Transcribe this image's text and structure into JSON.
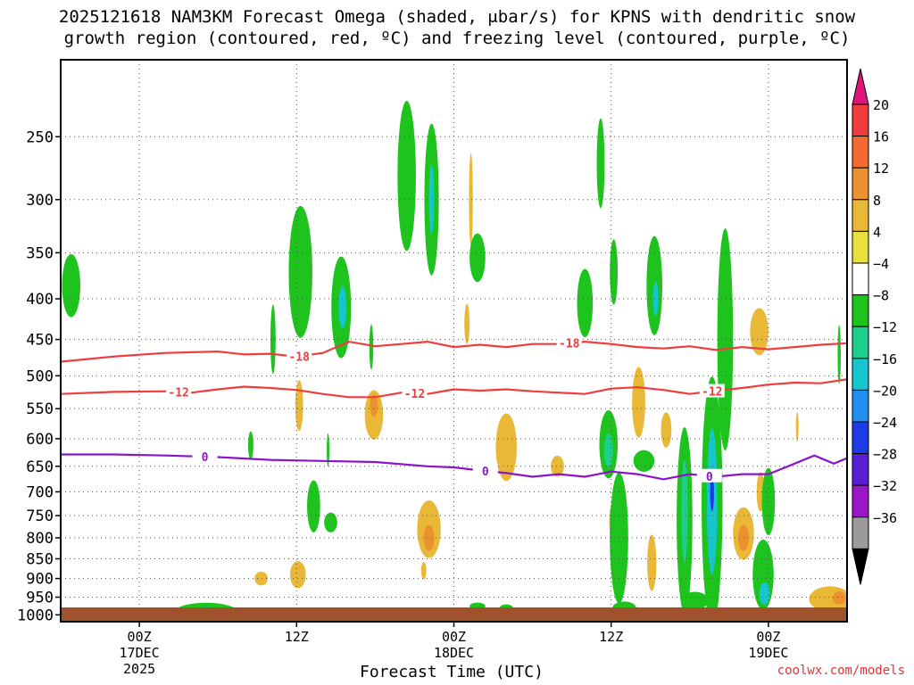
{
  "title": {
    "line1": "2025121618 NAM3KM Forecast Omega (shaded, μbar/s) for KPNS with dendritic snow",
    "line2": "growth region (contoured, red, ºC) and freezing level (contoured, purple, ºC)"
  },
  "watermark": "coolwx.com/models",
  "chart_data": {
    "type": "heatmap",
    "xlabel": "Forecast Time (UTC)",
    "x_ticks": [
      {
        "hour": 6,
        "lines": [
          "00Z",
          "17DEC",
          "2025"
        ]
      },
      {
        "hour": 18,
        "lines": [
          "12Z"
        ]
      },
      {
        "hour": 30,
        "lines": [
          "00Z",
          "18DEC"
        ]
      },
      {
        "hour": 42,
        "lines": [
          "12Z"
        ]
      },
      {
        "hour": 54,
        "lines": [
          "00Z",
          "19DEC"
        ]
      }
    ],
    "xlim": [
      0,
      60
    ],
    "ylim_hpa": [
      1020,
      200
    ],
    "y_ticks": [
      "250",
      "300",
      "350",
      "400",
      "450",
      "500",
      "550",
      "600",
      "650",
      "700",
      "750",
      "800",
      "850",
      "900",
      "950",
      "1000"
    ],
    "colorbar": {
      "labels": [
        "20",
        "16",
        "12",
        "8",
        "4",
        "−4",
        "−8",
        "−12",
        "−16",
        "−20",
        "−24",
        "−28",
        "−32",
        "−36"
      ],
      "colors": [
        "#f03c3c",
        "#f56a32",
        "#ec9130",
        "#e8b836",
        "#e8e03c",
        "#ffffff",
        "#1ec31e",
        "#1ccf8a",
        "#16c6cf",
        "#1e8ff0",
        "#1e3ce6",
        "#5a1ed2",
        "#9a16c8",
        "#9b9b9b"
      ],
      "top_cap_color": "#e0147a",
      "bottom_cap_color": "#000000"
    },
    "contours": [
      {
        "label": "-18",
        "color": "#f03c3c",
        "label_hours": [
          18.2,
          38.8
        ],
        "points": [
          [
            0,
            480
          ],
          [
            4,
            473
          ],
          [
            8,
            468
          ],
          [
            12,
            466
          ],
          [
            14,
            470
          ],
          [
            16,
            469
          ],
          [
            18,
            473
          ],
          [
            20,
            468
          ],
          [
            22,
            453
          ],
          [
            24,
            459
          ],
          [
            26,
            456
          ],
          [
            28,
            453
          ],
          [
            30,
            460
          ],
          [
            32,
            457
          ],
          [
            34,
            460
          ],
          [
            36,
            456
          ],
          [
            38,
            456
          ],
          [
            40,
            453
          ],
          [
            42,
            456
          ],
          [
            44,
            460
          ],
          [
            46,
            462
          ],
          [
            48,
            459
          ],
          [
            50,
            464
          ],
          [
            52,
            460
          ],
          [
            54,
            463
          ],
          [
            56,
            460
          ],
          [
            58,
            457
          ],
          [
            60,
            455
          ]
        ]
      },
      {
        "label": "-12",
        "color": "#f03c3c",
        "label_hours": [
          9,
          27,
          49.7
        ],
        "points": [
          [
            0,
            527
          ],
          [
            4,
            524
          ],
          [
            8,
            523
          ],
          [
            10,
            525
          ],
          [
            12,
            520
          ],
          [
            14,
            516
          ],
          [
            16,
            518
          ],
          [
            18,
            521
          ],
          [
            20,
            527
          ],
          [
            22,
            532
          ],
          [
            24,
            532
          ],
          [
            26,
            525
          ],
          [
            28,
            527
          ],
          [
            30,
            520
          ],
          [
            32,
            522
          ],
          [
            34,
            520
          ],
          [
            36,
            523
          ],
          [
            38,
            525
          ],
          [
            40,
            527
          ],
          [
            42,
            519
          ],
          [
            44,
            517
          ],
          [
            46,
            521
          ],
          [
            48,
            527
          ],
          [
            50,
            522
          ],
          [
            52,
            518
          ],
          [
            54,
            513
          ],
          [
            56,
            510
          ],
          [
            58,
            511
          ],
          [
            60,
            505
          ]
        ]
      },
      {
        "label": "0",
        "color": "#8c14c8",
        "label_hours": [
          11,
          32.4,
          49.5
        ],
        "points": [
          [
            0,
            628
          ],
          [
            4,
            628
          ],
          [
            8,
            630
          ],
          [
            12,
            633
          ],
          [
            16,
            638
          ],
          [
            20,
            640
          ],
          [
            24,
            642
          ],
          [
            28,
            650
          ],
          [
            30,
            652
          ],
          [
            32,
            658
          ],
          [
            34,
            663
          ],
          [
            36,
            670
          ],
          [
            38,
            665
          ],
          [
            40,
            670
          ],
          [
            42,
            660
          ],
          [
            44,
            665
          ],
          [
            46,
            675
          ],
          [
            48,
            665
          ],
          [
            50,
            670
          ],
          [
            52,
            665
          ],
          [
            54,
            665
          ],
          [
            56,
            645
          ],
          [
            57.5,
            630
          ],
          [
            59,
            645
          ],
          [
            60,
            635
          ]
        ]
      }
    ],
    "omega_regions": [
      {
        "value": -4,
        "t": 0.8,
        "p": 385,
        "dt": 0.7,
        "dp": 35
      },
      {
        "value": 4,
        "t": 18.2,
        "p": 545,
        "dt": 0.3,
        "dp": 40
      },
      {
        "value": 4,
        "t": 23.9,
        "p": 560,
        "dt": 0.7,
        "dp": 40
      },
      {
        "value": 8,
        "t": 23.9,
        "p": 545,
        "dt": 0.3,
        "dp": 18
      },
      {
        "value": 4,
        "t": 31.0,
        "p": 430,
        "dt": 0.2,
        "dp": 25
      },
      {
        "value": 4,
        "t": 31.3,
        "p": 300,
        "dt": 0.15,
        "dp": 40
      },
      {
        "value": 4,
        "t": 34.0,
        "p": 615,
        "dt": 0.8,
        "dp": 60
      },
      {
        "value": 4,
        "t": 37.9,
        "p": 650,
        "dt": 0.5,
        "dp": 20
      },
      {
        "value": 4,
        "t": 28.1,
        "p": 780,
        "dt": 0.9,
        "dp": 65
      },
      {
        "value": 8,
        "t": 28.1,
        "p": 800,
        "dt": 0.4,
        "dp": 30
      },
      {
        "value": 4,
        "t": 27.7,
        "p": 880,
        "dt": 0.2,
        "dp": 22
      },
      {
        "value": 4,
        "t": 15.3,
        "p": 900,
        "dt": 0.5,
        "dp": 18
      },
      {
        "value": 4,
        "t": 18.1,
        "p": 890,
        "dt": 0.6,
        "dp": 35
      },
      {
        "value": 4,
        "t": 44.1,
        "p": 540,
        "dt": 0.5,
        "dp": 55
      },
      {
        "value": 4,
        "t": 46.2,
        "p": 585,
        "dt": 0.4,
        "dp": 30
      },
      {
        "value": 4,
        "t": 45.1,
        "p": 860,
        "dt": 0.35,
        "dp": 70
      },
      {
        "value": 4,
        "t": 42.0,
        "p": 760,
        "dt": 0.15,
        "dp": 30
      },
      {
        "value": 4,
        "t": 52.1,
        "p": 790,
        "dt": 0.8,
        "dp": 60
      },
      {
        "value": 8,
        "t": 52.1,
        "p": 800,
        "dt": 0.4,
        "dp": 30
      },
      {
        "value": 4,
        "t": 53.3,
        "p": 440,
        "dt": 0.7,
        "dp": 30
      },
      {
        "value": 4,
        "t": 53.4,
        "p": 700,
        "dt": 0.3,
        "dp": 40
      },
      {
        "value": 4,
        "t": 50.4,
        "p": 460,
        "dt": 0.1,
        "dp": 12
      },
      {
        "value": 4,
        "t": 56.2,
        "p": 580,
        "dt": 0.1,
        "dp": 25
      },
      {
        "value": 4,
        "t": 58.7,
        "p": 955,
        "dt": 1.6,
        "dp": 35
      },
      {
        "value": 8,
        "t": 59.4,
        "p": 952,
        "dt": 0.5,
        "dp": 18
      },
      {
        "value": -4,
        "t": 23.7,
        "p": 460,
        "dt": 0.15,
        "dp": 30
      },
      {
        "value": -4,
        "t": 20.4,
        "p": 620,
        "dt": 0.1,
        "dp": 30
      },
      {
        "value": -4,
        "t": 14.5,
        "p": 612,
        "dt": 0.2,
        "dp": 25
      },
      {
        "value": -4,
        "t": 16.2,
        "p": 450,
        "dt": 0.2,
        "dp": 45
      },
      {
        "value": -4,
        "t": 18.3,
        "p": 370,
        "dt": 0.9,
        "dp": 70
      },
      {
        "value": -4,
        "t": 21.4,
        "p": 410,
        "dt": 0.75,
        "dp": 60
      },
      {
        "value": -12,
        "t": 21.5,
        "p": 410,
        "dt": 0.3,
        "dp": 25
      },
      {
        "value": -4,
        "t": 26.4,
        "p": 280,
        "dt": 0.7,
        "dp": 60
      },
      {
        "value": -4,
        "t": 28.3,
        "p": 300,
        "dt": 0.55,
        "dp": 65
      },
      {
        "value": -12,
        "t": 28.3,
        "p": 300,
        "dt": 0.2,
        "dp": 30
      },
      {
        "value": -4,
        "t": 31.8,
        "p": 355,
        "dt": 0.6,
        "dp": 25
      },
      {
        "value": -4,
        "t": 40.0,
        "p": 405,
        "dt": 0.6,
        "dp": 40
      },
      {
        "value": -4,
        "t": 41.2,
        "p": 270,
        "dt": 0.3,
        "dp": 35
      },
      {
        "value": -4,
        "t": 42.2,
        "p": 370,
        "dt": 0.3,
        "dp": 35
      },
      {
        "value": -4,
        "t": 45.3,
        "p": 385,
        "dt": 0.6,
        "dp": 55
      },
      {
        "value": -12,
        "t": 45.4,
        "p": 400,
        "dt": 0.2,
        "dp": 20
      },
      {
        "value": -4,
        "t": 59.4,
        "p": 470,
        "dt": 0.12,
        "dp": 40
      },
      {
        "value": -4,
        "t": 19.3,
        "p": 730,
        "dt": 0.5,
        "dp": 55
      },
      {
        "value": -4,
        "t": 20.6,
        "p": 765,
        "dt": 0.5,
        "dp": 22
      },
      {
        "value": -4,
        "t": 11.1,
        "p": 995,
        "dt": 2.5,
        "dp": 30
      },
      {
        "value": -8,
        "t": 11.2,
        "p": 995,
        "dt": 1.1,
        "dp": 18
      },
      {
        "value": -4,
        "t": 41.8,
        "p": 610,
        "dt": 0.7,
        "dp": 60
      },
      {
        "value": -8,
        "t": 41.8,
        "p": 620,
        "dt": 0.35,
        "dp": 30
      },
      {
        "value": -4,
        "t": 42.6,
        "p": 800,
        "dt": 0.7,
        "dp": 150
      },
      {
        "value": -4,
        "t": 43.0,
        "p": 980,
        "dt": 0.9,
        "dp": 18
      },
      {
        "value": -4,
        "t": 47.6,
        "p": 760,
        "dt": 0.6,
        "dp": 200
      },
      {
        "value": -8,
        "t": 47.6,
        "p": 740,
        "dt": 0.25,
        "dp": 110
      },
      {
        "value": -4,
        "t": 48.4,
        "p": 960,
        "dt": 1.0,
        "dp": 25
      },
      {
        "value": -4,
        "t": 49.7,
        "p": 720,
        "dt": 0.8,
        "dp": 250
      },
      {
        "value": -12,
        "t": 49.7,
        "p": 720,
        "dt": 0.4,
        "dp": 150
      },
      {
        "value": -20,
        "t": 49.7,
        "p": 700,
        "dt": 0.15,
        "dp": 40
      },
      {
        "value": -4,
        "t": 50.7,
        "p": 450,
        "dt": 0.6,
        "dp": 140
      },
      {
        "value": -4,
        "t": 53.6,
        "p": 890,
        "dt": 0.8,
        "dp": 90
      },
      {
        "value": -12,
        "t": 53.7,
        "p": 940,
        "dt": 0.4,
        "dp": 30
      },
      {
        "value": -4,
        "t": 54.0,
        "p": 720,
        "dt": 0.5,
        "dp": 70
      },
      {
        "value": -4,
        "t": 31.8,
        "p": 975,
        "dt": 0.6,
        "dp": 10
      },
      {
        "value": -4,
        "t": 34.0,
        "p": 980,
        "dt": 0.5,
        "dp": 10
      },
      {
        "value": -4,
        "t": 44.5,
        "p": 640,
        "dt": 0.8,
        "dp": 20
      }
    ]
  }
}
